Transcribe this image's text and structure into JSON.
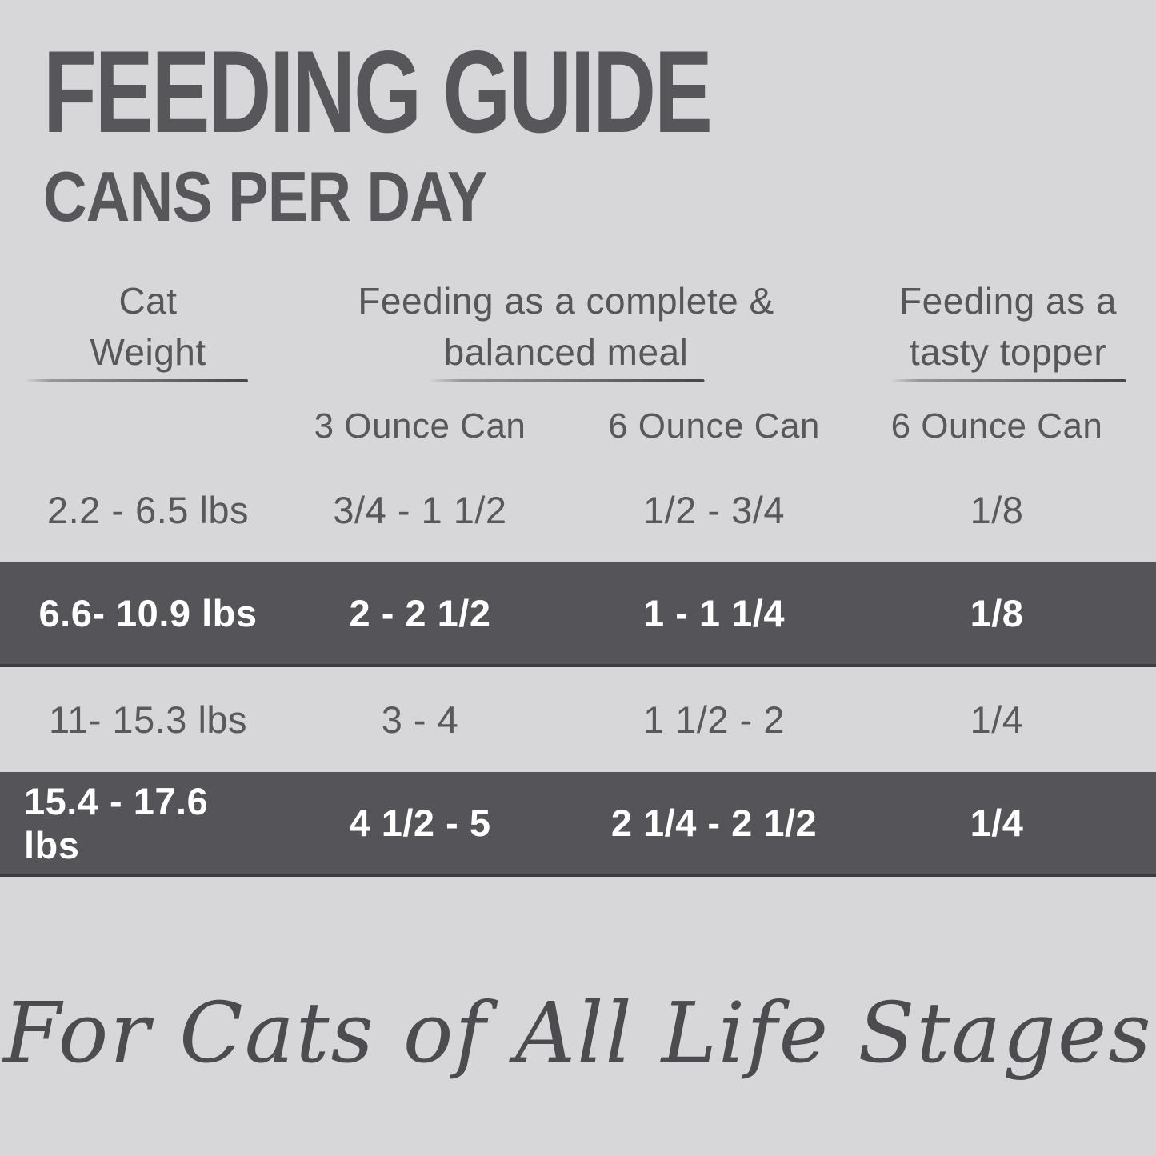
{
  "title": "FEEDING GUIDE",
  "subtitle": "CANS PER DAY",
  "table": {
    "column_headers": [
      {
        "lines": [
          "Cat",
          "Weight"
        ]
      },
      {
        "lines": [
          "Feeding as a complete &",
          "balanced meal"
        ]
      },
      {
        "lines": [
          "Feeding as a",
          "tasty topper"
        ]
      }
    ],
    "sub_headers": [
      "3 Ounce Can",
      "6 Ounce Can",
      "6 Ounce Can"
    ],
    "rows": [
      {
        "weight": "2.2 - 6.5 lbs",
        "meal_3oz": "3/4 - 1 1/2",
        "meal_6oz": "1/2 - 3/4",
        "topper_6oz": "1/8",
        "highlighted": false
      },
      {
        "weight": "6.6- 10.9 lbs",
        "meal_3oz": "2 - 2 1/2",
        "meal_6oz": "1 - 1 1/4",
        "topper_6oz": "1/8",
        "highlighted": true
      },
      {
        "weight": "11- 15.3 lbs",
        "meal_3oz": "3 - 4",
        "meal_6oz": "1 1/2 - 2",
        "topper_6oz": "1/4",
        "highlighted": false
      },
      {
        "weight": "15.4 - 17.6 lbs",
        "meal_3oz": "4 1/2 - 5",
        "meal_6oz": "2 1/4 - 2 1/2",
        "topper_6oz": "1/4",
        "highlighted": true
      }
    ]
  },
  "tagline": "For Cats of All Life Stages",
  "style": {
    "background": "#d7d7d9",
    "band": "#555458",
    "band_edge": "#3d3d3f",
    "text_dark": "#57565a",
    "text_on_band": "#ffffff"
  },
  "chart_data": {
    "type": "table",
    "title": "FEEDING GUIDE — CANS PER DAY",
    "columns": [
      "Cat Weight",
      "Feeding as a complete & balanced meal — 3 Ounce Can",
      "Feeding as a complete & balanced meal — 6 Ounce Can",
      "Feeding as a tasty topper — 6 Ounce Can"
    ],
    "rows": [
      [
        "2.2 - 6.5 lbs",
        "3/4 - 1 1/2",
        "1/2 - 3/4",
        "1/8"
      ],
      [
        "6.6- 10.9 lbs",
        "2 - 2 1/2",
        "1 - 1 1/4",
        "1/8"
      ],
      [
        "11- 15.3 lbs",
        "3 - 4",
        "1 1/2 - 2",
        "1/4"
      ],
      [
        "15.4 - 17.6 lbs",
        "4 1/2 - 5",
        "2 1/4 - 2 1/2",
        "1/4"
      ]
    ],
    "highlighted_rows": [
      1,
      3
    ],
    "footnote": "For Cats of All Life Stages"
  }
}
